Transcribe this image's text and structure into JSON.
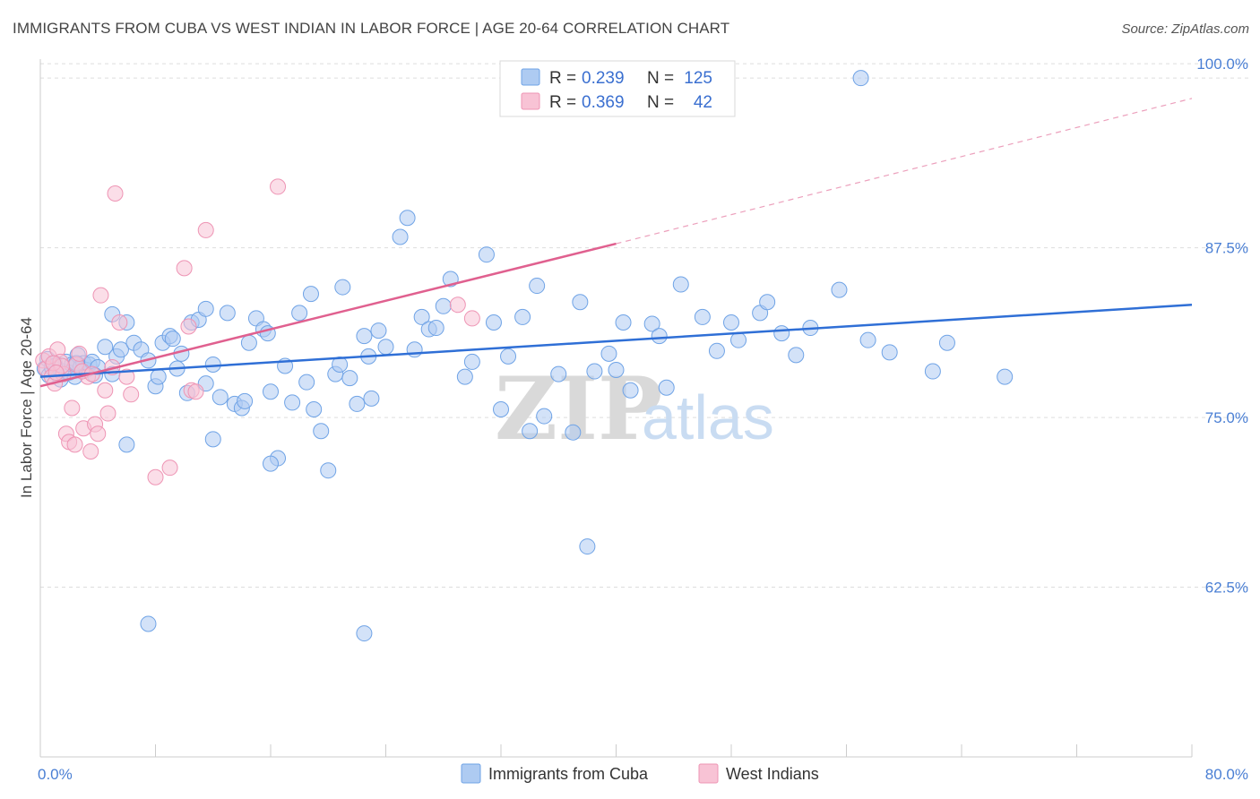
{
  "title": "IMMIGRANTS FROM CUBA VS WEST INDIAN IN LABOR FORCE | AGE 20-64 CORRELATION CHART",
  "source": "Source: ZipAtlas.com",
  "watermark": {
    "zip": "ZIP",
    "atlas": "atlas"
  },
  "legend": {
    "rows": [
      {
        "r_label": "R =",
        "r_value": "0.239",
        "n_label": "N =",
        "n_value": "125",
        "color": "#9cc0ee"
      },
      {
        "r_label": "R =",
        "r_value": "0.369",
        "n_label": "N =",
        "n_value": "42",
        "color": "#f6b3c9"
      }
    ]
  },
  "bottom_legend": [
    {
      "label": "Immigrants from Cuba",
      "color": "#9cc0ee"
    },
    {
      "label": "West Indians",
      "color": "#f6b3c9"
    }
  ],
  "chart_data": {
    "type": "scatter",
    "title": "IMMIGRANTS FROM CUBA VS WEST INDIAN IN LABOR FORCE | AGE 20-64 CORRELATION CHART",
    "xlabel": "",
    "ylabel": "In Labor Force | Age 20-64",
    "xlim": [
      0,
      80
    ],
    "ylim": [
      50,
      101
    ],
    "x_tick_labels": [
      "0.0%",
      "80.0%"
    ],
    "y_ticks": [
      62.5,
      75.0,
      87.5,
      100.0
    ],
    "y_tick_labels": [
      "62.5%",
      "75.0%",
      "87.5%",
      "100.0%"
    ],
    "grid": "horizontal-dashed",
    "legend_position": "top-center",
    "series": [
      {
        "name": "Immigrants from Cuba",
        "color": "#6fa3e6",
        "fill": "#aecbf2",
        "trend": {
          "x": [
            0,
            80
          ],
          "y": [
            78.0,
            83.3
          ],
          "color": "#2f6fd6"
        },
        "points": [
          [
            0.3,
            78.6
          ],
          [
            0.5,
            79.3
          ],
          [
            0.6,
            78.1
          ],
          [
            0.8,
            78.7
          ],
          [
            1.0,
            79.0
          ],
          [
            1.2,
            78.2
          ],
          [
            1.4,
            77.8
          ],
          [
            1.6,
            78.4
          ],
          [
            1.8,
            79.1
          ],
          [
            2.0,
            78.3
          ],
          [
            2.2,
            78.9
          ],
          [
            2.4,
            78.0
          ],
          [
            2.6,
            79.6
          ],
          [
            2.8,
            78.7
          ],
          [
            3.0,
            79.0
          ],
          [
            3.2,
            78.5
          ],
          [
            3.4,
            78.9
          ],
          [
            3.6,
            79.1
          ],
          [
            4.0,
            78.7
          ],
          [
            4.5,
            80.2
          ],
          [
            5.0,
            82.6
          ],
          [
            5.3,
            79.5
          ],
          [
            5.6,
            80.0
          ],
          [
            6.0,
            82.0
          ],
          [
            6.5,
            80.5
          ],
          [
            7.0,
            80.0
          ],
          [
            7.5,
            79.2
          ],
          [
            8.0,
            77.3
          ],
          [
            8.5,
            80.5
          ],
          [
            9.0,
            81.0
          ],
          [
            9.2,
            80.8
          ],
          [
            9.5,
            78.6
          ],
          [
            9.8,
            79.7
          ],
          [
            10.2,
            76.8
          ],
          [
            10.5,
            82.0
          ],
          [
            11.0,
            82.2
          ],
          [
            11.5,
            77.5
          ],
          [
            12.0,
            78.9
          ],
          [
            12.5,
            76.5
          ],
          [
            13.0,
            82.7
          ],
          [
            13.5,
            76.0
          ],
          [
            14.0,
            75.7
          ],
          [
            14.5,
            80.5
          ],
          [
            15.0,
            82.3
          ],
          [
            15.5,
            81.5
          ],
          [
            15.8,
            81.2
          ],
          [
            16.0,
            76.9
          ],
          [
            16.5,
            72.0
          ],
          [
            17.0,
            78.8
          ],
          [
            17.5,
            76.1
          ],
          [
            18.0,
            82.7
          ],
          [
            18.5,
            77.6
          ],
          [
            18.8,
            84.1
          ],
          [
            19.0,
            75.6
          ],
          [
            19.5,
            74.0
          ],
          [
            20.0,
            71.1
          ],
          [
            20.5,
            78.2
          ],
          [
            21.0,
            84.6
          ],
          [
            21.5,
            77.9
          ],
          [
            22.0,
            76.0
          ],
          [
            22.5,
            81.0
          ],
          [
            22.8,
            79.5
          ],
          [
            23.0,
            76.4
          ],
          [
            23.5,
            81.4
          ],
          [
            24.0,
            80.2
          ],
          [
            25.0,
            88.3
          ],
          [
            25.5,
            89.7
          ],
          [
            26.5,
            82.4
          ],
          [
            27.0,
            81.5
          ],
          [
            27.5,
            81.6
          ],
          [
            28.0,
            83.2
          ],
          [
            28.5,
            85.2
          ],
          [
            29.5,
            78.0
          ],
          [
            30.0,
            79.1
          ],
          [
            31.0,
            87.0
          ],
          [
            31.5,
            82.0
          ],
          [
            32.0,
            75.6
          ],
          [
            32.5,
            79.5
          ],
          [
            33.5,
            82.4
          ],
          [
            34.0,
            74.0
          ],
          [
            34.5,
            84.7
          ],
          [
            35.0,
            75.1
          ],
          [
            36.0,
            78.2
          ],
          [
            37.5,
            83.5
          ],
          [
            38.0,
            65.5
          ],
          [
            38.5,
            78.4
          ],
          [
            39.5,
            79.7
          ],
          [
            40.0,
            78.5
          ],
          [
            40.5,
            82.0
          ],
          [
            41.0,
            77.0
          ],
          [
            42.5,
            81.9
          ],
          [
            43.0,
            81.0
          ],
          [
            43.5,
            77.2
          ],
          [
            44.5,
            84.8
          ],
          [
            46.0,
            82.4
          ],
          [
            47.0,
            79.9
          ],
          [
            48.0,
            82.0
          ],
          [
            48.5,
            80.7
          ],
          [
            50.0,
            82.7
          ],
          [
            50.5,
            83.5
          ],
          [
            51.5,
            81.2
          ],
          [
            52.5,
            79.6
          ],
          [
            53.5,
            81.6
          ],
          [
            55.5,
            84.4
          ],
          [
            57.5,
            80.7
          ],
          [
            59.0,
            79.8
          ],
          [
            62.0,
            78.4
          ],
          [
            63.0,
            80.5
          ],
          [
            67.0,
            78.0
          ],
          [
            57.0,
            100.0
          ],
          [
            6.0,
            73.0
          ],
          [
            7.5,
            59.8
          ],
          [
            12.0,
            73.4
          ],
          [
            16.0,
            71.6
          ],
          [
            22.5,
            59.1
          ],
          [
            37.0,
            73.9
          ],
          [
            11.5,
            83.0
          ],
          [
            5.0,
            78.2
          ],
          [
            2.5,
            79.0
          ],
          [
            1.0,
            78.8
          ],
          [
            3.8,
            78.1
          ],
          [
            8.2,
            78.0
          ],
          [
            14.2,
            76.2
          ],
          [
            20.8,
            78.9
          ],
          [
            26.0,
            80.0
          ]
        ]
      },
      {
        "name": "West Indians",
        "color": "#ee94b4",
        "fill": "#f8c3d5",
        "trend": {
          "x": [
            0,
            40
          ],
          "y": [
            77.3,
            87.8
          ],
          "color": "#e0608f",
          "dashed_extension": {
            "x": [
              40,
              80
            ],
            "y": [
              87.8,
              98.5
            ]
          }
        },
        "points": [
          [
            0.2,
            79.2
          ],
          [
            0.4,
            78.6
          ],
          [
            0.6,
            79.5
          ],
          [
            0.8,
            78.0
          ],
          [
            1.0,
            77.5
          ],
          [
            1.2,
            80.0
          ],
          [
            1.4,
            79.1
          ],
          [
            1.6,
            78.2
          ],
          [
            1.8,
            73.8
          ],
          [
            2.0,
            73.2
          ],
          [
            2.2,
            75.7
          ],
          [
            2.5,
            78.9
          ],
          [
            2.7,
            79.7
          ],
          [
            3.0,
            74.2
          ],
          [
            3.3,
            78.0
          ],
          [
            3.5,
            72.5
          ],
          [
            3.8,
            74.5
          ],
          [
            4.0,
            73.8
          ],
          [
            4.2,
            84.0
          ],
          [
            4.5,
            77.0
          ],
          [
            4.7,
            75.3
          ],
          [
            5.0,
            78.7
          ],
          [
            5.2,
            91.5
          ],
          [
            5.5,
            82.0
          ],
          [
            6.0,
            78.0
          ],
          [
            6.3,
            76.7
          ],
          [
            8.0,
            70.6
          ],
          [
            9.0,
            71.3
          ],
          [
            10.0,
            86.0
          ],
          [
            10.3,
            81.7
          ],
          [
            10.5,
            77.0
          ],
          [
            11.5,
            88.8
          ],
          [
            16.5,
            92.0
          ],
          [
            29.0,
            83.3
          ],
          [
            30.0,
            82.3
          ],
          [
            1.5,
            78.8
          ],
          [
            0.9,
            79.0
          ],
          [
            2.9,
            78.4
          ],
          [
            1.1,
            78.3
          ],
          [
            3.6,
            78.2
          ],
          [
            10.8,
            76.9
          ],
          [
            2.4,
            73.0
          ]
        ]
      }
    ]
  }
}
